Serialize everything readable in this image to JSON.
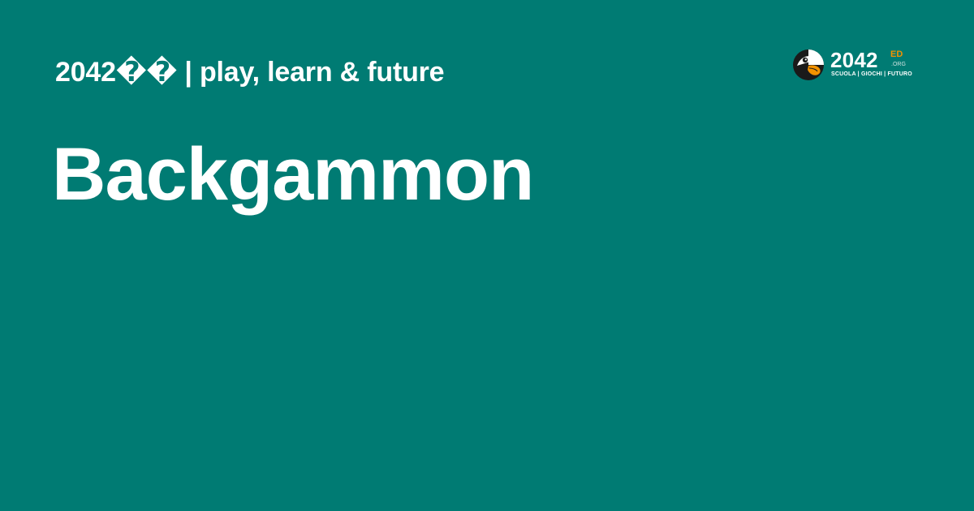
{
  "header": {
    "tagline": "2042�� | play, learn & future"
  },
  "main": {
    "title": "Backgammon"
  },
  "logo": {
    "number": "2042",
    "superscript": "ED",
    "domain": ".ORG",
    "subtitle": "SCUOLA | GIOCHI | FUTURO",
    "icon": "parrot-head-icon",
    "accent_color": "#f39200"
  },
  "colors": {
    "background": "#007b73",
    "text": "#ffffff"
  }
}
